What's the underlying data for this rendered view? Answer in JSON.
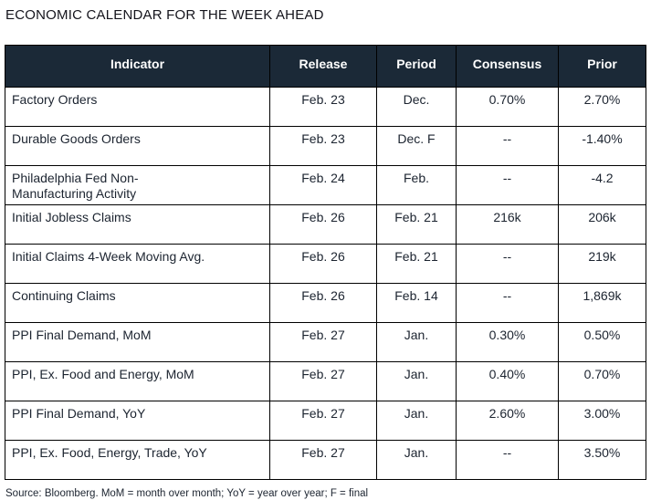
{
  "title": "ECONOMIC CALENDAR FOR THE WEEK AHEAD",
  "table": {
    "columns": [
      "Indicator",
      "Release",
      "Period",
      "Consensus",
      "Prior"
    ],
    "fields": [
      "indicator",
      "release",
      "period",
      "consensus",
      "prior"
    ],
    "rows": [
      {
        "indicator": "Factory Orders",
        "release": "Feb. 23",
        "period": "Dec.",
        "consensus": "0.70%",
        "prior": "2.70%"
      },
      {
        "indicator": "Durable Goods Orders",
        "release": "Feb. 23",
        "period": "Dec. F",
        "consensus": "--",
        "prior": "-1.40%"
      },
      {
        "indicator": "Philadelphia Fed Non-\nManufacturing Activity",
        "release": "Feb. 24",
        "period": "Feb.",
        "consensus": "--",
        "prior": "-4.2"
      },
      {
        "indicator": "Initial Jobless Claims",
        "release": "Feb. 26",
        "period": "Feb. 21",
        "consensus": "216k",
        "prior": "206k"
      },
      {
        "indicator": "Initial Claims 4-Week Moving Avg.",
        "release": "Feb. 26",
        "period": "Feb. 21",
        "consensus": "--",
        "prior": "219k"
      },
      {
        "indicator": "Continuing Claims",
        "release": "Feb. 26",
        "period": "Feb. 14",
        "consensus": "--",
        "prior": "1,869k"
      },
      {
        "indicator": "PPI Final Demand, MoM",
        "release": "Feb. 27",
        "period": "Jan.",
        "consensus": "0.30%",
        "prior": "0.50%"
      },
      {
        "indicator": "PPI, Ex. Food and Energy, MoM",
        "release": "Feb. 27",
        "period": "Jan.",
        "consensus": "0.40%",
        "prior": "0.70%"
      },
      {
        "indicator": "PPI Final Demand, YoY",
        "release": "Feb. 27",
        "period": "Jan.",
        "consensus": "2.60%",
        "prior": "3.00%"
      },
      {
        "indicator": "PPI, Ex. Food, Energy, Trade, YoY",
        "release": "Feb. 27",
        "period": "Jan.",
        "consensus": "--",
        "prior": "3.50%"
      }
    ]
  },
  "footer": {
    "source_note": "Source: Bloomberg. MoM = month over month; YoY = year over year; F = final"
  },
  "colors": {
    "header_bg": "#1b2937",
    "header_text": "#ffffff",
    "row_bg": "#ffffff",
    "body_text": "#1c2430",
    "border": "#000000"
  }
}
